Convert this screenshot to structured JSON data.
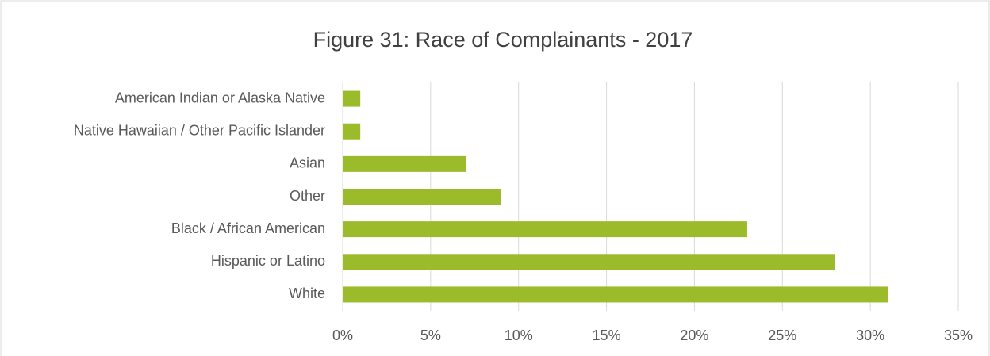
{
  "chart_data": {
    "type": "bar",
    "orientation": "horizontal",
    "title": "Figure 31: Race of Complainants - 2017",
    "categories": [
      "American Indian or Alaska Native",
      "Native Hawaiian / Other Pacific Islander",
      "Asian",
      "Other",
      "Black / African American",
      "Hispanic or Latino",
      "White"
    ],
    "values": [
      1,
      1,
      7,
      9,
      23,
      28,
      31
    ],
    "color": "#9bbb2a",
    "xlim": [
      0,
      35
    ],
    "xticks": [
      {
        "value": 0,
        "label": "0%"
      },
      {
        "value": 5,
        "label": "5%"
      },
      {
        "value": 10,
        "label": "10%"
      },
      {
        "value": 15,
        "label": "15%"
      },
      {
        "value": 20,
        "label": "20%"
      },
      {
        "value": 25,
        "label": "25%"
      },
      {
        "value": 30,
        "label": "30%"
      },
      {
        "value": 35,
        "label": "35%"
      }
    ],
    "grid": true
  }
}
